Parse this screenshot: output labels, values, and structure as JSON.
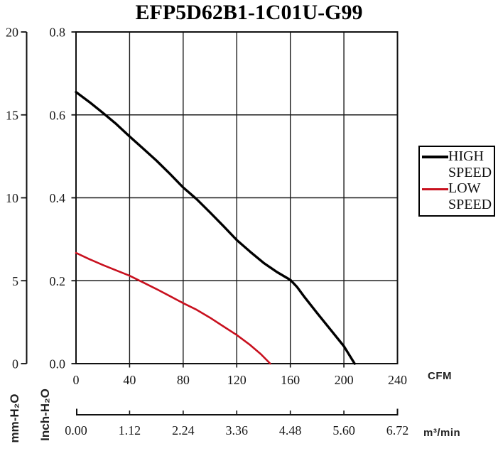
{
  "chart_data": {
    "type": "line",
    "title": "EFP5D62B1-1C01U-G99",
    "xlabel": "CFM",
    "x2label": "m³/min",
    "ylabel_outer": "mm-H₂O",
    "ylabel_inner": "Inch-H₂O",
    "xlim_cfm": [
      0,
      240
    ],
    "ylim_inch": [
      0,
      0.8
    ],
    "ylim_mm": [
      0,
      20
    ],
    "grid": true,
    "x_ticks_cfm": [
      "0",
      "40",
      "80",
      "120",
      "160",
      "200",
      "240"
    ],
    "x2_ticks_m3min": [
      "0.00",
      "1.12",
      "2.24",
      "3.36",
      "4.48",
      "5.60",
      "6.72"
    ],
    "y_ticks_mm": [
      "20",
      "15",
      "10",
      "5",
      "0"
    ],
    "y_ticks_inch": [
      "0.8",
      "0.6",
      "0.4",
      "0.2",
      "0.0"
    ],
    "legend_position": "right-outside",
    "legend": {
      "entries": [
        {
          "line1": "HIGH",
          "line2": "SPEED"
        },
        {
          "line1": "LOW",
          "line2": "SPEED"
        }
      ]
    },
    "series": [
      {
        "name": "HIGH SPEED",
        "color": "#000000",
        "stroke_width": 3.4,
        "points_cfm_inch": [
          [
            0,
            0.655
          ],
          [
            10,
            0.631
          ],
          [
            20,
            0.605
          ],
          [
            30,
            0.578
          ],
          [
            40,
            0.548
          ],
          [
            50,
            0.519
          ],
          [
            60,
            0.49
          ],
          [
            70,
            0.458
          ],
          [
            80,
            0.425
          ],
          [
            90,
            0.397
          ],
          [
            100,
            0.365
          ],
          [
            110,
            0.332
          ],
          [
            120,
            0.298
          ],
          [
            130,
            0.27
          ],
          [
            140,
            0.243
          ],
          [
            150,
            0.221
          ],
          [
            160,
            0.202
          ],
          [
            165,
            0.185
          ],
          [
            170,
            0.163
          ],
          [
            180,
            0.122
          ],
          [
            190,
            0.082
          ],
          [
            200,
            0.042
          ],
          [
            208,
            0.0
          ]
        ]
      },
      {
        "name": "LOW SPEED",
        "color": "#c8101e",
        "stroke_width": 2.6,
        "points_cfm_inch": [
          [
            0,
            0.267
          ],
          [
            10,
            0.252
          ],
          [
            20,
            0.238
          ],
          [
            30,
            0.225
          ],
          [
            40,
            0.212
          ],
          [
            50,
            0.196
          ],
          [
            60,
            0.18
          ],
          [
            70,
            0.163
          ],
          [
            80,
            0.146
          ],
          [
            90,
            0.13
          ],
          [
            100,
            0.111
          ],
          [
            110,
            0.09
          ],
          [
            120,
            0.069
          ],
          [
            130,
            0.045
          ],
          [
            138,
            0.023
          ],
          [
            145,
            0.0
          ]
        ]
      }
    ]
  }
}
